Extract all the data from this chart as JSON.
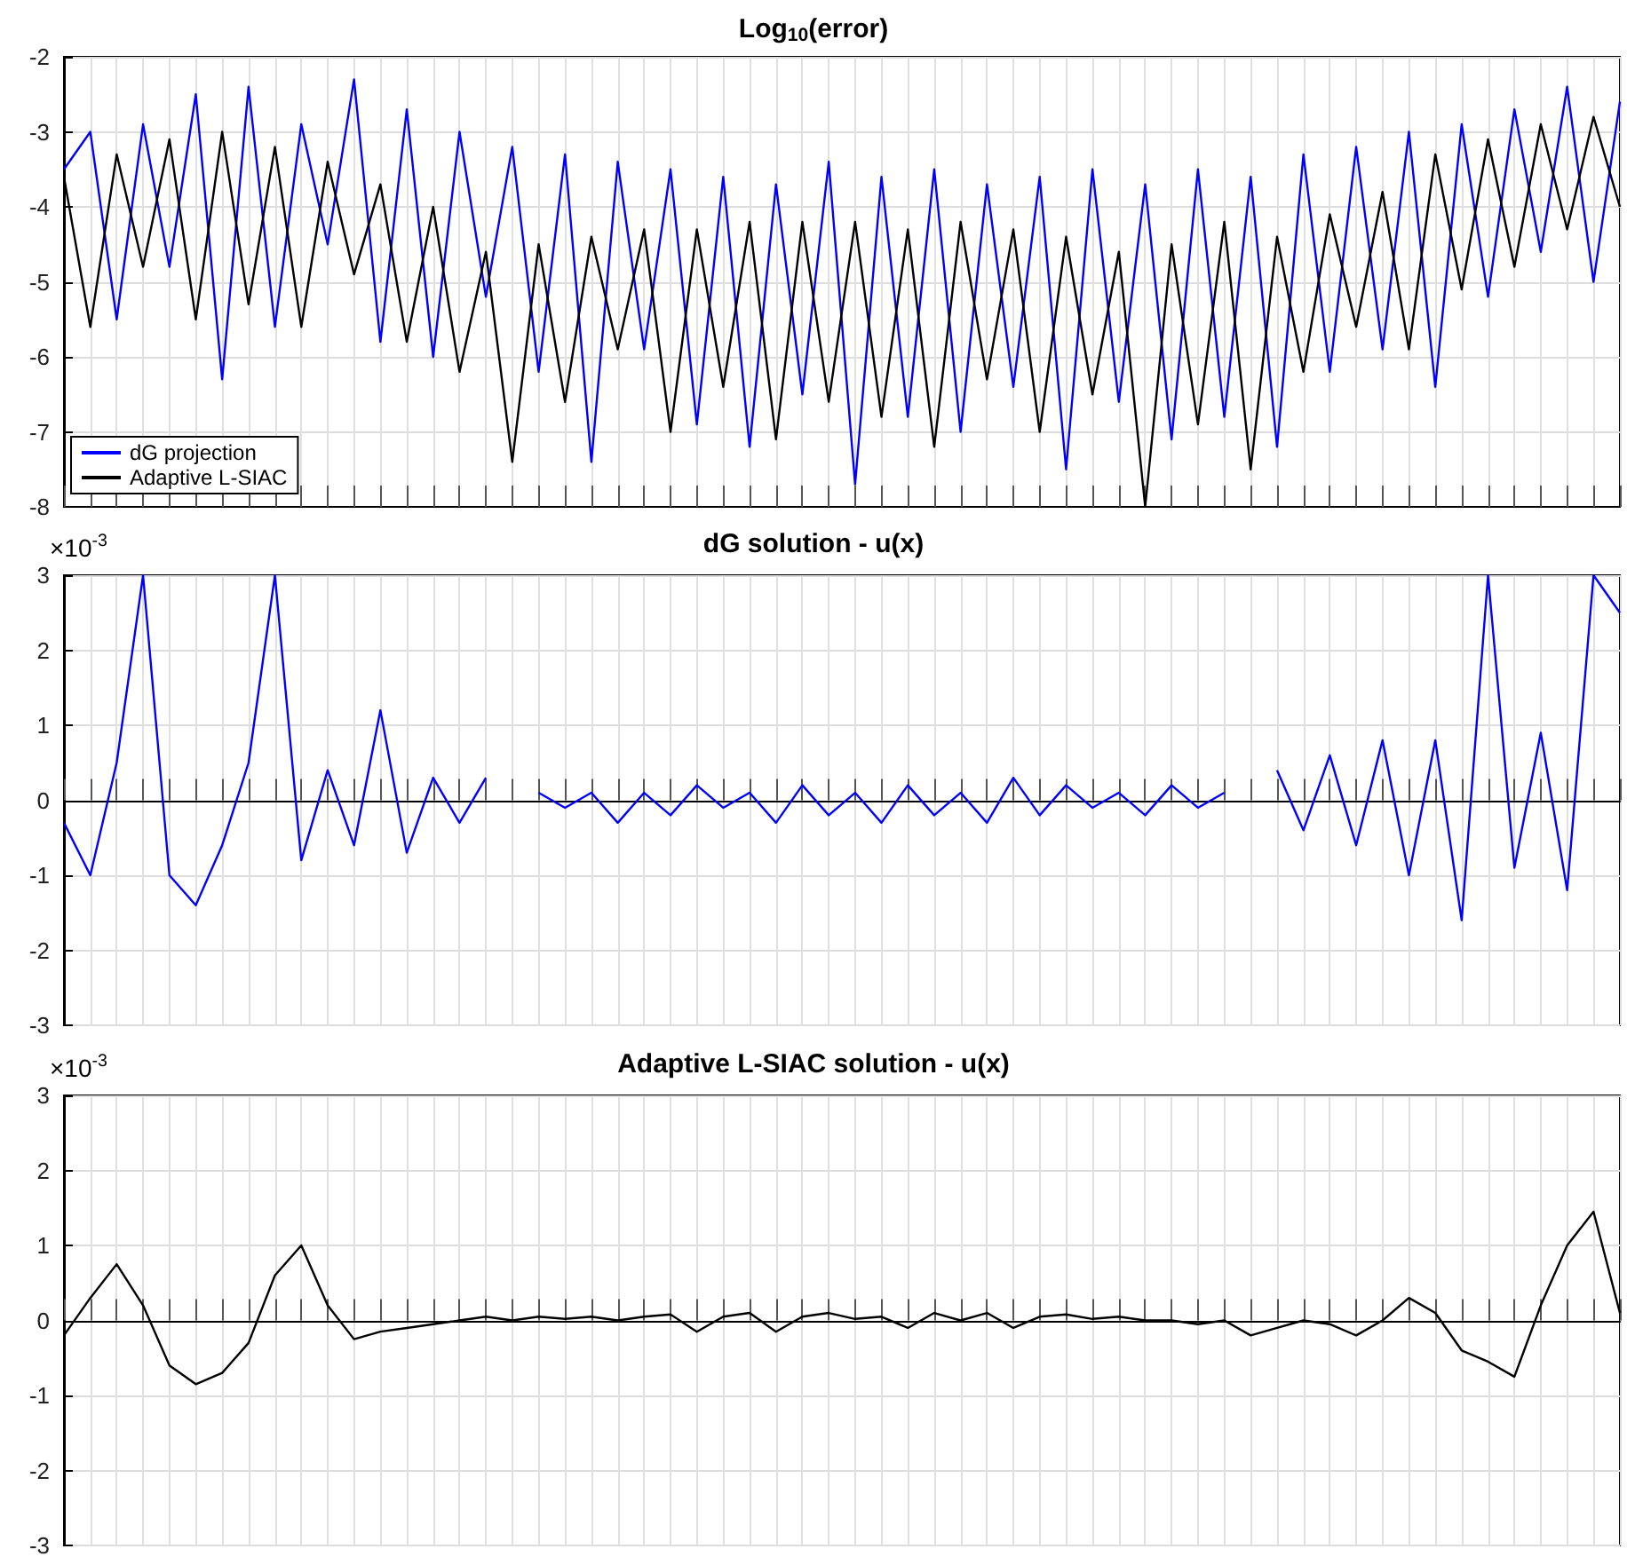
{
  "chart_data": [
    {
      "type": "line",
      "title": "Log$_{10}$(error)",
      "categories": [
        null,
        null,
        null,
        null,
        null,
        null,
        null,
        null,
        null,
        null,
        null,
        null,
        null,
        null,
        null,
        null,
        null,
        null,
        null,
        null,
        null,
        null,
        null,
        null,
        null,
        null,
        null,
        null,
        null,
        null,
        null,
        null,
        null,
        null,
        null,
        null,
        null,
        null,
        null,
        null,
        null,
        null,
        null,
        null,
        null,
        null,
        null,
        null,
        null,
        null,
        null,
        null,
        null,
        null,
        null,
        null,
        null,
        null,
        null,
        null
      ],
      "series": [
        {
          "name": "dG projection",
          "color": "#0000ff",
          "values": [
            -3.5,
            -3.0,
            -5.5,
            -2.9,
            -4.8,
            -2.5,
            -6.3,
            -2.4,
            -5.6,
            -2.9,
            -4.5,
            -2.3,
            -5.8,
            -2.7,
            -6.0,
            -3.0,
            -5.2,
            -3.2,
            -6.2,
            -3.3,
            -7.4,
            -3.4,
            -5.9,
            -3.5,
            -6.9,
            -3.6,
            -7.2,
            -3.7,
            -6.5,
            -3.4,
            -7.7,
            -3.6,
            -6.8,
            -3.5,
            -7.0,
            -3.7,
            -6.4,
            -3.6,
            -7.5,
            -3.5,
            -6.6,
            -3.7,
            -7.1,
            -3.5,
            -6.8,
            -3.6,
            -7.2,
            -3.3,
            -6.2,
            -3.2,
            -5.9,
            -3.0,
            -6.4,
            -2.9,
            -5.2,
            -2.7,
            -4.6,
            -2.4,
            -5.0,
            -2.6
          ]
        },
        {
          "name": "Adaptive L-SIAC",
          "color": "#000000",
          "values": [
            -3.6,
            -5.6,
            -3.3,
            -4.8,
            -3.1,
            -5.5,
            -3.0,
            -5.3,
            -3.2,
            -5.6,
            -3.4,
            -4.9,
            -3.7,
            -5.8,
            -4.0,
            -6.2,
            -4.6,
            -7.4,
            -4.5,
            -6.6,
            -4.4,
            -5.9,
            -4.3,
            -7.0,
            -4.3,
            -6.4,
            -4.2,
            -7.1,
            -4.2,
            -6.6,
            -4.2,
            -6.8,
            -4.3,
            -7.2,
            -4.2,
            -6.3,
            -4.3,
            -7.0,
            -4.4,
            -6.5,
            -4.6,
            -8.0,
            -4.5,
            -6.9,
            -4.2,
            -7.5,
            -4.4,
            -6.2,
            -4.1,
            -5.6,
            -3.8,
            -5.9,
            -3.3,
            -5.1,
            -3.1,
            -4.8,
            -2.9,
            -4.3,
            -2.8,
            -4.0
          ]
        }
      ],
      "ylim": [
        -8,
        -2
      ],
      "yticks": [
        -8,
        -7,
        -6,
        -5,
        -4,
        -3,
        -2
      ],
      "grid": true,
      "tick_labels": "y",
      "legend": "bottom left",
      "marker": "none",
      "line_style": "solid"
    },
    {
      "type": "line",
      "title": "dG solution - u(x)",
      "annotations": [
        "×10$^{-3}$"
      ],
      "categories": [
        null,
        null,
        null,
        null,
        null,
        null,
        null,
        null,
        null,
        null,
        null,
        null,
        null,
        null,
        null,
        null,
        null,
        null,
        null,
        null,
        null,
        null,
        null,
        null,
        null,
        null,
        null,
        null,
        null,
        null,
        null,
        null,
        null,
        null,
        null,
        null,
        null,
        null,
        null,
        null,
        null,
        null,
        null,
        null,
        null,
        null,
        null,
        null,
        null,
        null,
        null,
        null,
        null,
        null,
        null,
        null,
        null,
        null,
        null,
        null
      ],
      "series": [
        {
          "color": "#0000ff",
          "values": [
            -0.3,
            -1.0,
            0.5,
            3.0,
            -1.0,
            -1.4,
            -0.6,
            0.5,
            3.0,
            -0.8,
            0.4,
            -0.6,
            1.2,
            -0.7,
            0.3,
            -0.3,
            0.3,
            null,
            0.1,
            -0.1,
            0.1,
            -0.3,
            0.1,
            -0.2,
            0.2,
            -0.1,
            0.1,
            -0.3,
            0.2,
            -0.2,
            0.1,
            -0.3,
            0.2,
            -0.2,
            0.1,
            -0.3,
            0.3,
            -0.2,
            0.2,
            -0.1,
            0.1,
            -0.2,
            0.2,
            -0.1,
            0.1,
            null,
            0.4,
            -0.4,
            0.6,
            -0.6,
            0.8,
            -1.0,
            0.8,
            -1.6,
            3.0,
            -0.9,
            0.9,
            -1.2,
            3.0,
            2.5
          ]
        }
      ],
      "ylim": [
        -3,
        3
      ],
      "yticks": [
        -3,
        -2,
        -1,
        0,
        1,
        2,
        3
      ],
      "grid": true,
      "tick_labels": "y",
      "legend": false,
      "marker": "none",
      "line_style": "solid"
    },
    {
      "type": "line",
      "title": "Adaptive L-SIAC solution - u(x)",
      "annotations": [
        "×10$^{-3}$"
      ],
      "categories": [
        null,
        null,
        null,
        null,
        null,
        null,
        null,
        null,
        null,
        null,
        null,
        null,
        null,
        null,
        null,
        null,
        null,
        null,
        null,
        null,
        null,
        null,
        null,
        null,
        null,
        null,
        null,
        null,
        null,
        null,
        null,
        null,
        null,
        null,
        null,
        null,
        null,
        null,
        null,
        null,
        null,
        null,
        null,
        null,
        null,
        null,
        null,
        null,
        null,
        null,
        null,
        null,
        null,
        null,
        null,
        null,
        null,
        null,
        null,
        null
      ],
      "series": [
        {
          "color": "#000000",
          "values": [
            -0.2,
            0.3,
            0.75,
            0.2,
            -0.6,
            -0.85,
            -0.7,
            -0.3,
            0.6,
            1.0,
            0.2,
            -0.25,
            -0.15,
            -0.1,
            -0.05,
            0.0,
            0.05,
            0.0,
            0.05,
            0.02,
            0.05,
            0.0,
            0.05,
            0.08,
            -0.15,
            0.05,
            0.1,
            -0.15,
            0.05,
            0.1,
            0.02,
            0.05,
            -0.1,
            0.1,
            0.0,
            0.1,
            -0.1,
            0.05,
            0.08,
            0.02,
            0.05,
            0.0,
            0.0,
            -0.05,
            0.0,
            -0.2,
            -0.1,
            0.0,
            -0.05,
            -0.2,
            0.0,
            0.3,
            0.1,
            -0.4,
            -0.55,
            -0.75,
            0.2,
            1.0,
            1.45,
            0.1
          ]
        }
      ],
      "ylim": [
        -3,
        3
      ],
      "yticks": [
        -3,
        -2,
        -1,
        0,
        1,
        2,
        3
      ],
      "grid": true,
      "tick_labels": "y",
      "legend": false,
      "marker": "none",
      "line_style": "solid"
    }
  ]
}
